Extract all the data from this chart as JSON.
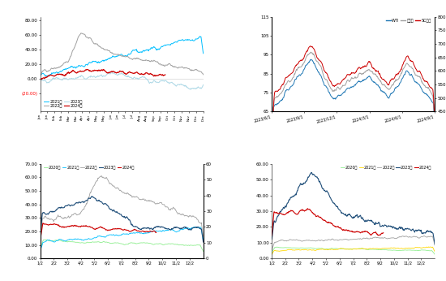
{
  "bg_color": "#ffffff",
  "panel1": {
    "ylim": [
      -45,
      85
    ],
    "yticks": [
      -20,
      0,
      20,
      40,
      60,
      80
    ],
    "legend_labels": [
      "2021年",
      "2022年",
      "2023年",
      "2024年"
    ],
    "colors": [
      "#00bfff",
      "#a0a0a0",
      "#add8e6",
      "#cc0000"
    ],
    "x_labels": [
      "Jan",
      "Jan",
      "Feb",
      "Feb",
      "Mar",
      "Mar",
      "Apr",
      "Apr",
      "May",
      "May",
      "Jun",
      "Jun",
      "Jul",
      "Jul",
      "Aug",
      "Aug",
      "Sep",
      "Sep",
      "Oct",
      "Oct",
      "Nov",
      "Nov",
      "Dec",
      "Dec"
    ]
  },
  "panel2": {
    "ylim_left": [
      65,
      115
    ],
    "ylim_right": [
      450,
      800
    ],
    "yticks_left": [
      65,
      75,
      85,
      95,
      105,
      115
    ],
    "yticks_right": [
      450,
      500,
      550,
      600,
      650,
      700,
      750,
      800
    ],
    "legend_labels": [
      "WTI",
      "布伦特",
      "SC原油"
    ],
    "colors": [
      "#1f77b4",
      "#a0a0a0",
      "#cc0000"
    ],
    "x_labels": [
      "2023/6/1",
      "2023/9/1",
      "2023/12/1",
      "2024/3/1",
      "2024/6/1",
      "2024/9/1"
    ]
  },
  "panel3": {
    "ylim": [
      0,
      70
    ],
    "ylim_right": [
      0,
      60
    ],
    "yticks": [
      0,
      10,
      20,
      30,
      40,
      50,
      60,
      70
    ],
    "yticks_right": [
      0,
      10,
      20,
      30,
      40,
      50,
      60
    ],
    "legend_labels": [
      "2020年",
      "2021年",
      "2022年",
      "2023年",
      "2024年"
    ],
    "colors": [
      "#90ee90",
      "#00bfff",
      "#a0a0a0",
      "#1f4e79",
      "#cc0000"
    ],
    "x_labels": [
      "1/2",
      "2/2",
      "3/2",
      "4/2",
      "5/2",
      "6/2",
      "7/2",
      "8/2",
      "9/2",
      "10/2",
      "11/2",
      "12/2"
    ]
  },
  "panel4": {
    "ylim": [
      0,
      60
    ],
    "yticks": [
      0,
      10,
      20,
      30,
      40,
      50,
      60
    ],
    "legend_labels": [
      "2020年",
      "2021年",
      "2022年",
      "2023年",
      "2024年"
    ],
    "colors": [
      "#90ee90",
      "#ffd700",
      "#a0a0a0",
      "#1f4e79",
      "#cc0000"
    ],
    "x_labels": [
      "1/2",
      "2/2",
      "3/2",
      "4/2",
      "5/2",
      "6/2",
      "7/2",
      "8/2",
      "9/2",
      "10/2",
      "11/2",
      "12/2"
    ]
  }
}
